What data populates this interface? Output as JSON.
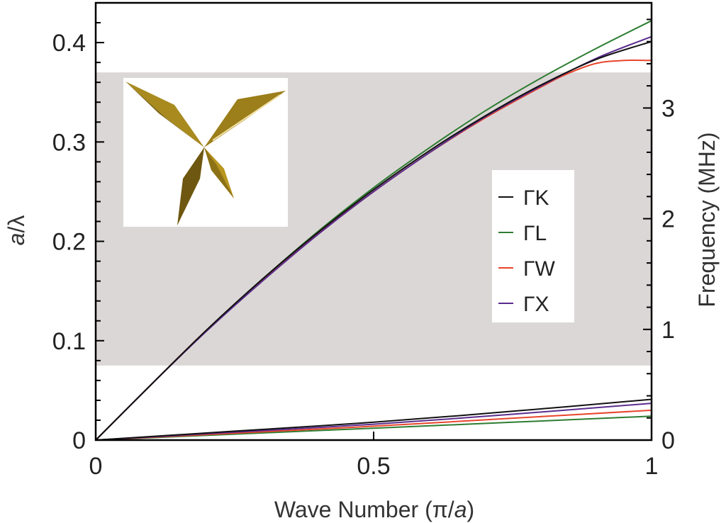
{
  "chart_data": {
    "type": "line",
    "xlabel": "Wave Number (π/a)",
    "xlabel_parts": {
      "prefix": "Wave Number (π/",
      "italic": "a",
      "suffix": ")"
    },
    "ylabel_left": "a/λ",
    "ylabel_left_parts": {
      "italic": "a",
      "suffix": "/λ"
    },
    "ylabel_right": "Frequency (MHz)",
    "xlim": [
      0,
      1
    ],
    "ylim_left": [
      0,
      0.44
    ],
    "ylim_right": [
      0,
      3.95
    ],
    "x_ticks": [
      {
        "value": 0,
        "label": "0"
      },
      {
        "value": 0.5,
        "label": "0.5"
      },
      {
        "value": 1,
        "label": "1"
      }
    ],
    "y_left_ticks": [
      {
        "value": 0,
        "label": "0"
      },
      {
        "value": 0.1,
        "label": "0.1"
      },
      {
        "value": 0.2,
        "label": "0.2"
      },
      {
        "value": 0.3,
        "label": "0.3"
      },
      {
        "value": 0.4,
        "label": "0.4"
      }
    ],
    "y_right_ticks": [
      {
        "value": 0,
        "label": "0"
      },
      {
        "value": 1,
        "label": "1"
      },
      {
        "value": 2,
        "label": "2"
      },
      {
        "value": 3,
        "label": "3"
      }
    ],
    "band_gap": {
      "y_from": 0.075,
      "y_to": 0.37,
      "color": "#dcd7d7"
    },
    "legend_placement": "center-right",
    "series": [
      {
        "name": "ΓK",
        "color": "#111111",
        "upper": {
          "x": [
            0,
            0.1,
            0.2,
            0.3,
            0.4,
            0.5,
            0.6,
            0.7,
            0.8,
            0.9,
            1.0
          ],
          "y": [
            0,
            0.056,
            0.111,
            0.162,
            0.209,
            0.252,
            0.291,
            0.326,
            0.357,
            0.383,
            0.401
          ]
        },
        "lower": {
          "x": [
            0,
            0.25,
            0.5,
            0.75,
            1.0
          ],
          "y": [
            0,
            0.009,
            0.018,
            0.029,
            0.041
          ]
        }
      },
      {
        "name": "ΓL",
        "color": "#2e7d32",
        "upper": {
          "x": [
            0,
            0.1,
            0.2,
            0.3,
            0.4,
            0.5,
            0.6,
            0.7,
            0.8,
            0.9,
            1.0
          ],
          "y": [
            0,
            0.056,
            0.111,
            0.162,
            0.21,
            0.254,
            0.294,
            0.331,
            0.364,
            0.394,
            0.422
          ]
        },
        "lower": {
          "x": [
            0,
            0.25,
            0.5,
            0.75,
            1.0
          ],
          "y": [
            0,
            0.006,
            0.012,
            0.018,
            0.024
          ]
        }
      },
      {
        "name": "ΓW",
        "color": "#e8452c",
        "upper": {
          "x": [
            0,
            0.1,
            0.2,
            0.3,
            0.4,
            0.5,
            0.6,
            0.7,
            0.8,
            0.85,
            0.9,
            0.95,
            1.0
          ],
          "y": [
            0,
            0.056,
            0.111,
            0.161,
            0.208,
            0.25,
            0.289,
            0.324,
            0.355,
            0.369,
            0.379,
            0.382,
            0.382
          ]
        },
        "lower": {
          "x": [
            0,
            0.25,
            0.5,
            0.75,
            1.0
          ],
          "y": [
            0,
            0.007,
            0.014,
            0.022,
            0.03
          ]
        }
      },
      {
        "name": "ΓX",
        "color": "#5b2d8e",
        "upper": {
          "x": [
            0,
            0.1,
            0.2,
            0.3,
            0.4,
            0.5,
            0.6,
            0.7,
            0.8,
            0.9,
            1.0
          ],
          "y": [
            0,
            0.056,
            0.11,
            0.16,
            0.207,
            0.25,
            0.289,
            0.325,
            0.356,
            0.384,
            0.406
          ]
        },
        "lower": {
          "x": [
            0,
            0.25,
            0.5,
            0.75,
            1.0
          ],
          "y": [
            0,
            0.008,
            0.016,
            0.026,
            0.037
          ]
        }
      }
    ]
  }
}
